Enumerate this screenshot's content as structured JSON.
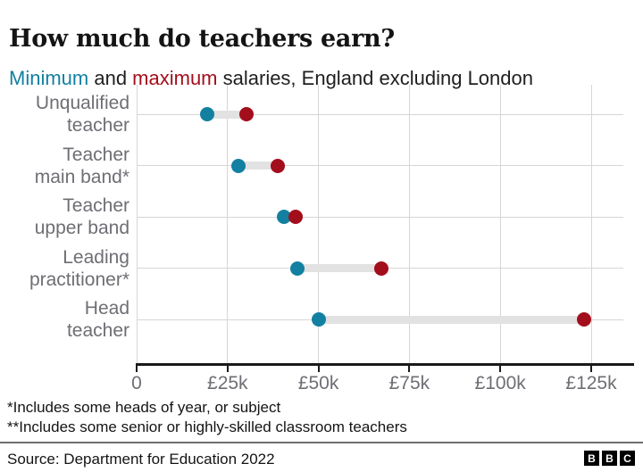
{
  "header": {
    "title": "How much do teachers earn?",
    "subtitle": {
      "min_word": "Minimum",
      "joiner": " and ",
      "max_word": "maximum",
      "rest": " salaries, England excluding London"
    }
  },
  "chart_data": {
    "type": "scatter",
    "variant": "dumbbell-range",
    "title": "How much do teachers earn?",
    "subtitle": "Minimum and maximum salaries, England excluding London",
    "categories": [
      "Unqualified teacher",
      "Teacher main band*",
      "Teacher upper band",
      "Leading practitioner*",
      "Head teacher"
    ],
    "category_lines": [
      [
        "Unqualified",
        "teacher"
      ],
      [
        "Teacher",
        "main band*"
      ],
      [
        "Teacher",
        "upper band"
      ],
      [
        "Leading",
        "practitioner*"
      ],
      [
        "Head",
        "teacher"
      ]
    ],
    "series": [
      {
        "name": "Minimum",
        "values": [
          19340,
          28000,
          40625,
          44218,
          50122
        ]
      },
      {
        "name": "Maximum",
        "values": [
          30172,
          38810,
          43685,
          67351,
          123057
        ]
      }
    ],
    "xlabel": "",
    "ylabel": "",
    "xlim": [
      0,
      125000
    ],
    "grid": true,
    "legend_position": "inline-in-subtitle",
    "x_axis": {
      "ticks": [
        {
          "value": 0,
          "label": "0"
        },
        {
          "value": 25000,
          "label": "£25k"
        },
        {
          "value": 50000,
          "label": "£50k"
        },
        {
          "value": 75000,
          "label": "£75k"
        },
        {
          "value": 100000,
          "label": "£100k"
        },
        {
          "value": 125000,
          "label": "£125k"
        }
      ]
    },
    "colors": {
      "min": "#1380a1",
      "max": "#a30e1c",
      "band": "#e2e2e2",
      "grid": "#d6d6d6",
      "axis": "#1a1a1a",
      "tick_label": "#6e6e74",
      "category_label": "#6e6e74"
    }
  },
  "footnotes": [
    "*Includes some heads of year, or subject",
    "**Includes some senior or highly-skilled classroom teachers"
  ],
  "source": "Source: Department for Education 2022",
  "logo": {
    "letters": [
      "B",
      "B",
      "C"
    ]
  }
}
